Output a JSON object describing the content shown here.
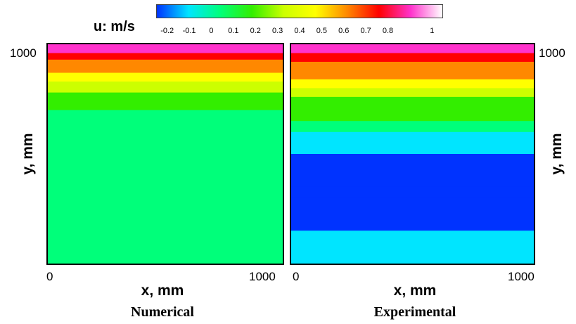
{
  "colorbar": {
    "label": "u: m/s",
    "ticks": [
      "-0.2",
      "-0.1",
      "0",
      "0.1",
      "0.2",
      "0.3",
      "0.4",
      "0.5",
      "0.6",
      "0.7",
      "0.8",
      "1"
    ],
    "range": [
      -0.25,
      1.05
    ],
    "colors": [
      "#0033ff",
      "#00e5ff",
      "#00ff7a",
      "#33ee00",
      "#ccff00",
      "#ffff00",
      "#ff8800",
      "#ff0000",
      "#ff33cc",
      "#ffffff"
    ]
  },
  "chart_data": [
    {
      "type": "heatmap",
      "title": "Numerical",
      "xlabel": "x, mm",
      "ylabel": "y, mm",
      "xlim": [
        0,
        1000
      ],
      "ylim": [
        0,
        1000
      ],
      "x_ticks": [
        "0",
        "1000"
      ],
      "y_ticks": [
        "1000"
      ],
      "colorbar_label": "u: m/s",
      "profile": {
        "y": [
          1000,
          960,
          930,
          900,
          870,
          830,
          780,
          700,
          600,
          500,
          400,
          300,
          200,
          100,
          50,
          0
        ],
        "u": [
          0.92,
          0.85,
          0.68,
          0.62,
          0.5,
          0.38,
          0.2,
          0.13,
          0.13,
          0.13,
          0.12,
          0.13,
          0.13,
          0.13,
          0.11,
          0.03
        ]
      }
    },
    {
      "type": "heatmap",
      "title": "Experimental",
      "xlabel": "x, mm",
      "ylabel": "y, mm",
      "xlim": [
        0,
        1000
      ],
      "ylim": [
        0,
        1000
      ],
      "x_ticks": [
        "0",
        "1000"
      ],
      "y_ticks": [
        "1000"
      ],
      "colorbar_label": "u: m/s",
      "profile": {
        "y": [
          1000,
          960,
          920,
          880,
          840,
          800,
          760,
          700,
          650,
          600,
          550,
          500,
          450,
          400,
          350,
          300,
          250,
          200,
          150,
          100,
          50,
          0
        ],
        "u": [
          0.9,
          0.8,
          0.67,
          0.6,
          0.52,
          0.4,
          0.3,
          0.18,
          0.1,
          0.03,
          -0.06,
          -0.13,
          -0.17,
          -0.19,
          -0.2,
          -0.2,
          -0.19,
          -0.17,
          -0.12,
          -0.08,
          -0.05,
          -0.03
        ]
      }
    }
  ]
}
